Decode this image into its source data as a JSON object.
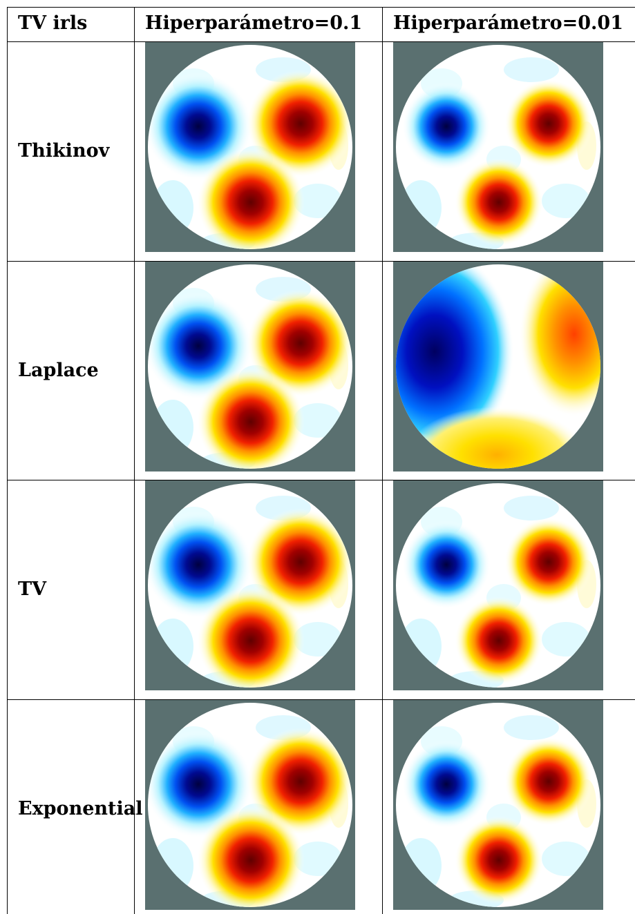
{
  "table": {
    "header": [
      "TV irls",
      "Hiperparámetro=0.1",
      "Hiperparámetro=0.01"
    ],
    "rows": [
      {
        "label": "Thikinov"
      },
      {
        "label": "Laplace"
      },
      {
        "label": "TV"
      },
      {
        "label": "Exponential"
      }
    ]
  }
}
